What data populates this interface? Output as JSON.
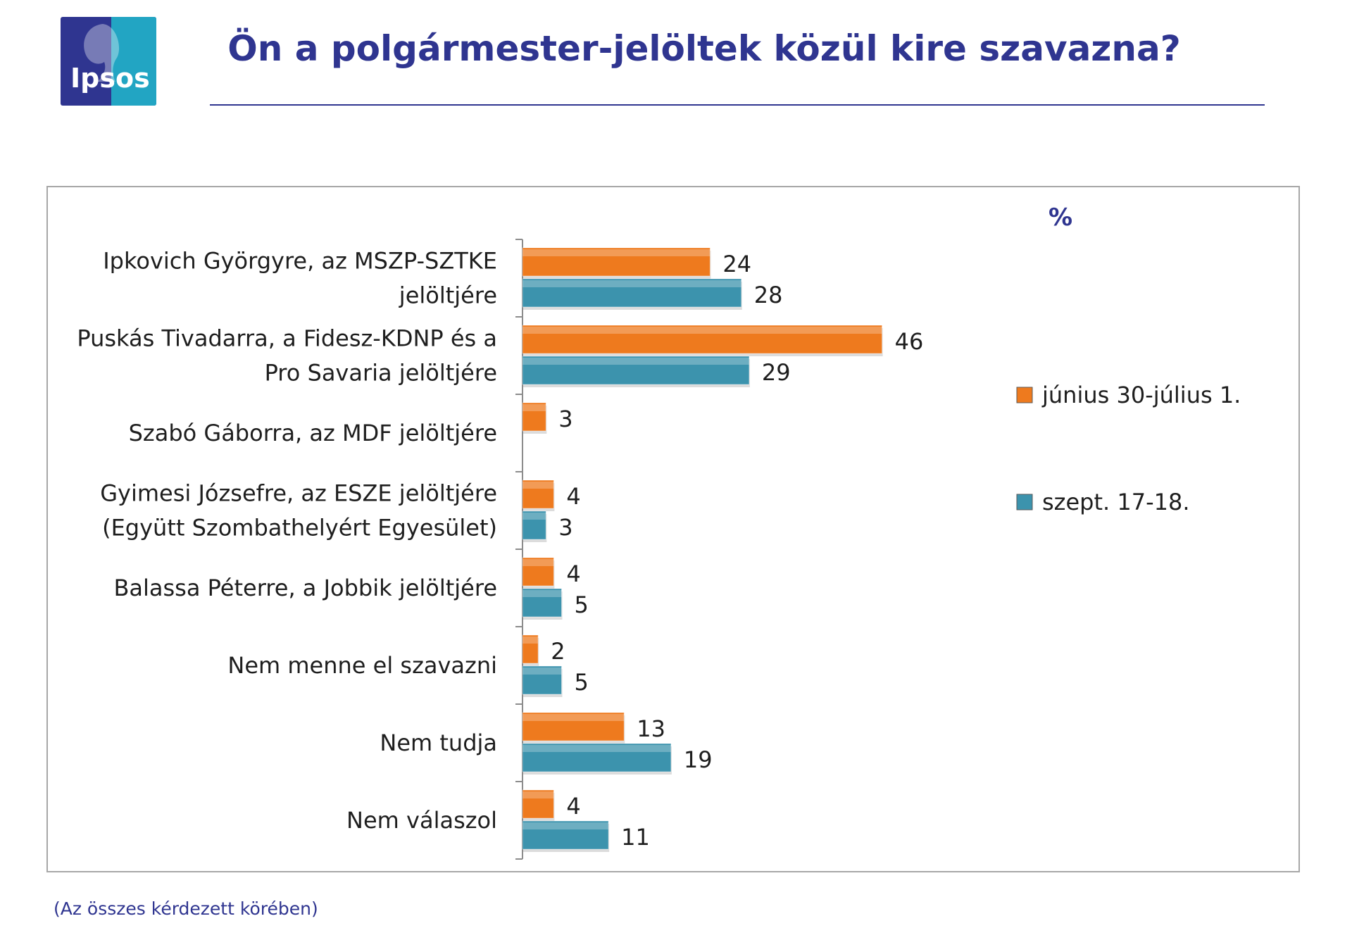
{
  "header": {
    "logo_text": "Ipsos",
    "title": "Ön a polgármester-jelöltek közül kire szavazna?"
  },
  "footnote": "(Az összes kérdezett körében)",
  "colors": {
    "series1": "#ee7a1e",
    "series2": "#3c93ad",
    "title": "#2f3590",
    "logo_left": "#2f3590",
    "logo_right": "#22a5c3"
  },
  "chart_data": {
    "type": "bar",
    "orientation": "horizontal",
    "unit_label": "%",
    "categories": [
      [
        "Ipkovich Györgyre, az MSZP-SZTKE",
        "jelöltjére"
      ],
      [
        "Puskás Tivadarra, a Fidesz-KDNP és a",
        "Pro Savaria jelöltjére"
      ],
      [
        "Szabó Gáborra, az MDF jelöltjére"
      ],
      [
        "Gyimesi Józsefre, az ESZE jelöltjére",
        "(Együtt Szombathelyért Egyesület)"
      ],
      [
        "Balassa Péterre, a Jobbik jelöltjére"
      ],
      [
        "Nem menne el szavazni"
      ],
      [
        "Nem tudja"
      ],
      [
        "Nem válaszol"
      ]
    ],
    "series": [
      {
        "name": "június 30-július 1.",
        "values": [
          24,
          46,
          3,
          4,
          4,
          2,
          13,
          4
        ]
      },
      {
        "name": "szept. 17-18.",
        "values": [
          28,
          29,
          null,
          3,
          5,
          5,
          19,
          11
        ]
      }
    ],
    "legend_position": "right",
    "grid": false
  }
}
